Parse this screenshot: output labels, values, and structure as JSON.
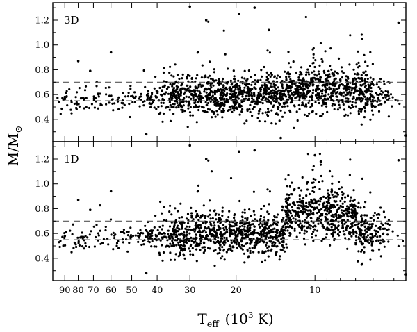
{
  "chart_data": {
    "type": "scatter",
    "x_axis": {
      "label_main": "T",
      "label_sub": "eff",
      "label_unit_open": "(10",
      "label_unit_exp": "3",
      "label_unit_close": " K)",
      "scale": "log, reversed (temperature decreasing to the right)",
      "lim": [
        100,
        4.5
      ],
      "ticks": [
        {
          "value": 90,
          "label": "90"
        },
        {
          "value": 80,
          "label": "80"
        },
        {
          "value": 70,
          "label": "70"
        },
        {
          "value": 60,
          "label": "60"
        },
        {
          "value": 50,
          "label": "50"
        },
        {
          "value": 40,
          "label": "40"
        },
        {
          "value": 30,
          "label": "30"
        },
        {
          "value": 20,
          "label": "20"
        },
        {
          "value": 10,
          "label": "10"
        }
      ]
    },
    "y_axis": {
      "label_main": "M/M",
      "label_sub": "⊙",
      "lim": [
        0.22,
        1.34
      ],
      "ticks": [
        {
          "value": 0.4,
          "label": "0.4"
        },
        {
          "value": 0.6,
          "label": "0.6"
        },
        {
          "value": 0.8,
          "label": "0.8"
        },
        {
          "value": 1.0,
          "label": "1.0"
        },
        {
          "value": 1.2,
          "label": "1.2"
        }
      ]
    },
    "reference_lines": [
      0.55,
      0.7
    ],
    "grid": false,
    "panels": [
      {
        "label": "3D",
        "n_points": 1700,
        "bands": [
          {
            "t_range": [
              100,
              40
            ],
            "mean": 0.56,
            "sd": 0.05
          },
          {
            "t_range": [
              40,
              13
            ],
            "mean": 0.59,
            "sd": 0.08
          },
          {
            "t_range": [
              13,
              6
            ],
            "mean": 0.63,
            "sd": 0.09
          },
          {
            "t_range": [
              6,
              4.5
            ],
            "mean": 0.58,
            "sd": 0.07
          }
        ],
        "highlight_points": [
          {
            "t": 90,
            "m": 0.58
          },
          {
            "t": 80,
            "m": 0.87
          },
          {
            "t": 72,
            "m": 0.79
          },
          {
            "t": 60,
            "m": 0.94
          },
          {
            "t": 44,
            "m": 0.28
          },
          {
            "t": 30,
            "m": 1.31
          },
          {
            "t": 26,
            "m": 1.2
          },
          {
            "t": 19.5,
            "m": 1.25
          },
          {
            "t": 17,
            "m": 1.3
          },
          {
            "t": 15,
            "m": 1.12
          },
          {
            "t": 13.5,
            "m": 0.25
          },
          {
            "t": 4.8,
            "m": 1.18
          },
          {
            "t": 4.5,
            "m": 0.27
          }
        ]
      },
      {
        "label": "1D",
        "n_points": 1700,
        "bands": [
          {
            "t_range": [
              100,
              40
            ],
            "mean": 0.56,
            "sd": 0.05
          },
          {
            "t_range": [
              40,
              13
            ],
            "mean": 0.59,
            "sd": 0.08
          },
          {
            "t_range": [
              13,
              7
            ],
            "mean": 0.76,
            "sd": 0.1
          },
          {
            "t_range": [
              7,
              4.5
            ],
            "mean": 0.62,
            "sd": 0.09
          }
        ],
        "highlight_points": [
          {
            "t": 90,
            "m": 0.58
          },
          {
            "t": 80,
            "m": 0.87
          },
          {
            "t": 72,
            "m": 0.79
          },
          {
            "t": 60,
            "m": 0.94
          },
          {
            "t": 44,
            "m": 0.28
          },
          {
            "t": 30,
            "m": 1.31
          },
          {
            "t": 26,
            "m": 1.2
          },
          {
            "t": 19.5,
            "m": 1.26
          },
          {
            "t": 17,
            "m": 1.27
          },
          {
            "t": 10,
            "m": 1.23
          },
          {
            "t": 9.5,
            "m": 1.18
          },
          {
            "t": 4.8,
            "m": 1.19
          },
          {
            "t": 4.5,
            "m": 0.27
          }
        ]
      }
    ]
  }
}
